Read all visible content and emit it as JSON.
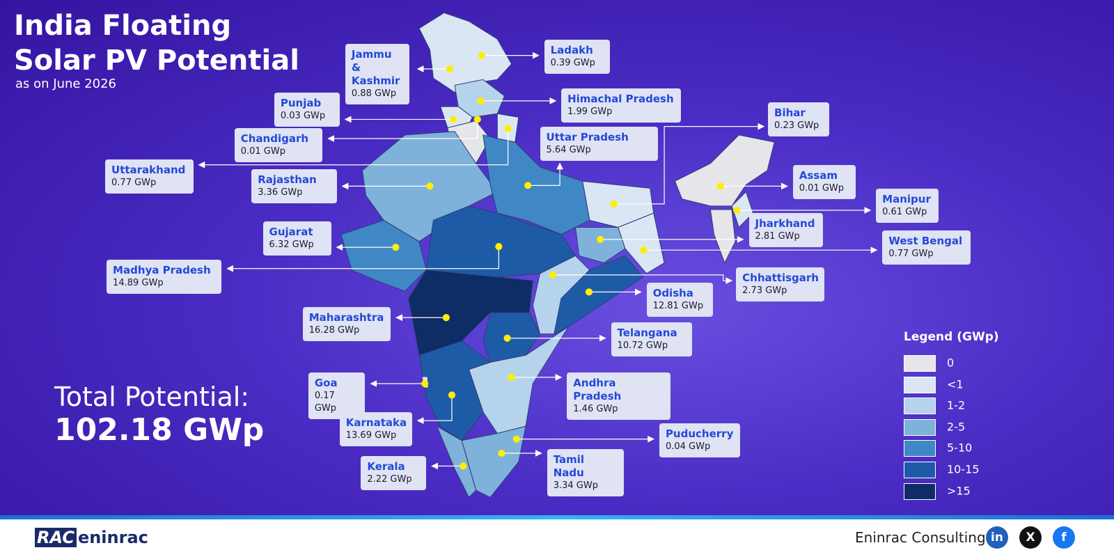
{
  "header": {
    "title": "India Floating Solar PV Potential",
    "subtitle": "as on June 2026"
  },
  "states": [
    {
      "name": "Ladakh",
      "value": "0.39 GWp"
    },
    {
      "name": "Jammu & Kashmir",
      "value": "0.88 GWp"
    },
    {
      "name": "Himachal Pradesh",
      "value": "1.99 GWp"
    },
    {
      "name": "Punjab",
      "value": "0.03 GWp"
    },
    {
      "name": "Chandigarh",
      "value": "0.01 GWp"
    },
    {
      "name": "Uttarakhand",
      "value": "0.77 GWp"
    },
    {
      "name": "Uttar Pradesh",
      "value": "5.64 GWp"
    },
    {
      "name": "Rajasthan",
      "value": "3.36 GWp"
    },
    {
      "name": "Bihar",
      "value": "0.23 GWp"
    },
    {
      "name": "Assam",
      "value": "0.01 GWp"
    },
    {
      "name": "Manipur",
      "value": "0.61 GWp"
    },
    {
      "name": "Jharkhand",
      "value": "2.81 GWp"
    },
    {
      "name": "West Bengal",
      "value": "0.77 GWp"
    },
    {
      "name": "Gujarat",
      "value": "6.32 GWp"
    },
    {
      "name": "Madhya Pradesh",
      "value": "14.89 GWp"
    },
    {
      "name": "Chhattisgarh",
      "value": "2.73 GWp"
    },
    {
      "name": "Odisha",
      "value": "12.81 GWp"
    },
    {
      "name": "Maharashtra",
      "value": "16.28 GWp"
    },
    {
      "name": "Telangana",
      "value": "10.72 GWp"
    },
    {
      "name": "Andhra Pradesh",
      "value": "1.46 GWp"
    },
    {
      "name": "Goa",
      "value": "0.17 GWp"
    },
    {
      "name": "Karnataka",
      "value": "13.69 GWp"
    },
    {
      "name": "Puducherry",
      "value": "0.04 GWp"
    },
    {
      "name": "Tamil Nadu",
      "value": "3.34 GWp"
    },
    {
      "name": "Kerala",
      "value": "2.22 GWp"
    }
  ],
  "total": {
    "label": "Total Potential:",
    "value": "102.18 GWp"
  },
  "legend": {
    "title": "Legend (GWp)",
    "items": [
      "0",
      "<1",
      "1-2",
      "2-5",
      "5-10",
      "10-15",
      ">15"
    ]
  },
  "footer": {
    "logo_mark": "RAC",
    "logo": "eninrac",
    "company": "Eninrac Consulting",
    "icons": [
      "in",
      "X",
      "f"
    ]
  }
}
